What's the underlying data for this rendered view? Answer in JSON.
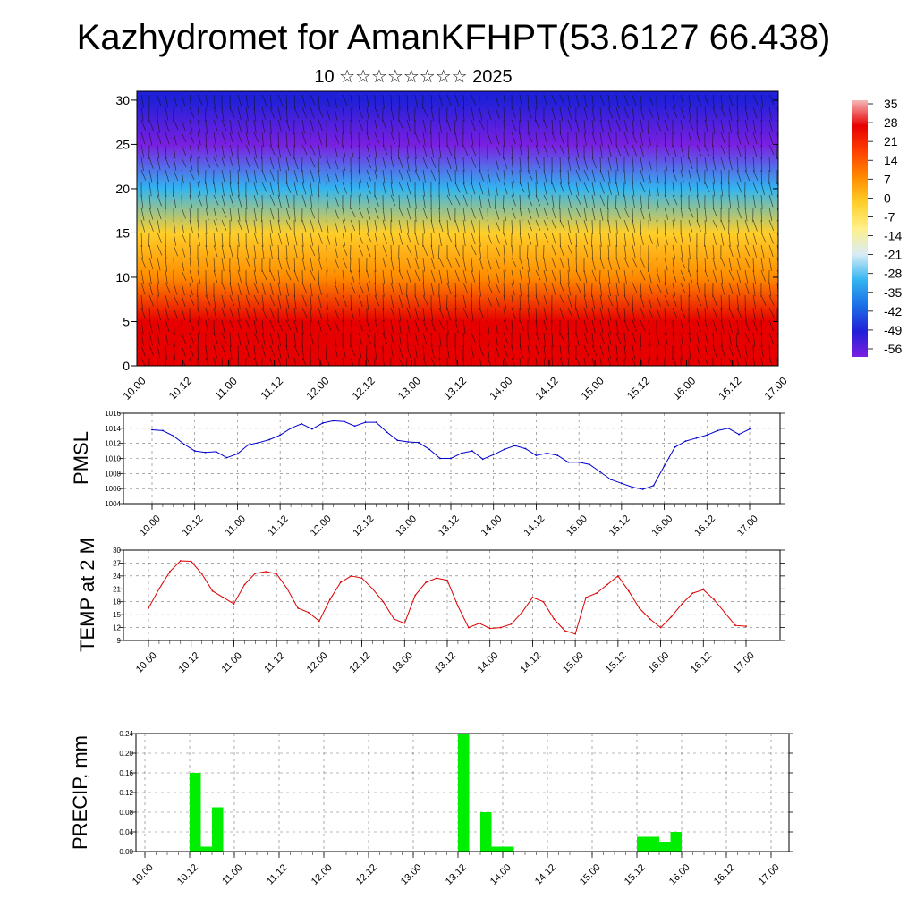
{
  "title": "Kazhydromet for AmanKFHPT(53.6127 66.438)",
  "subtitle": "10 ☆☆☆☆☆☆☆☆ 2025",
  "x_labels": [
    "10.00",
    "10.12",
    "11.00",
    "11.12",
    "12.00",
    "12.12",
    "13.00",
    "13.12",
    "14.00",
    "14.12",
    "15.00",
    "15.12",
    "16.00",
    "16.12",
    "17.00"
  ],
  "colorbar": {
    "labels": [
      "35",
      "28",
      "21",
      "14",
      "7",
      "0",
      "-7",
      "-14",
      "-21",
      "-28",
      "-35",
      "-42",
      "-49",
      "-56"
    ],
    "colors": [
      "#f6b8b8",
      "#e60000",
      "#ff4000",
      "#ff8c00",
      "#ffcf2a",
      "#fff08a",
      "#d8ecf6",
      "#33b5f0",
      "#1c6fe6",
      "#2020d8",
      "#7a1fe0"
    ]
  },
  "chart_data": [
    {
      "type": "heatmap",
      "name": "vertical temperature/wind cross-section",
      "x_ticks": [
        "10.00",
        "10.12",
        "11.00",
        "11.12",
        "12.00",
        "12.12",
        "13.00",
        "13.12",
        "14.00",
        "14.12",
        "15.00",
        "15.12",
        "16.00",
        "16.12",
        "17.00"
      ],
      "y_ticks": [
        0,
        5,
        10,
        15,
        20,
        25,
        30
      ],
      "ylim": [
        0,
        31
      ],
      "color_range": [
        -56,
        35
      ],
      "profile": {
        "height": [
          0,
          5,
          10,
          15,
          20,
          25,
          30
        ],
        "temperature": [
          26,
          22,
          12,
          -4,
          -30,
          -52,
          -48
        ]
      }
    },
    {
      "type": "line",
      "ylabel": "PMSL",
      "color": "#0000cc",
      "ylim": [
        1004,
        1016
      ],
      "y_ticks": [
        1004,
        1006,
        1008,
        1010,
        1012,
        1014,
        1016
      ],
      "x_ticks": [
        "10.00",
        "10.12",
        "11.00",
        "11.12",
        "12.00",
        "12.12",
        "13.00",
        "13.12",
        "14.00",
        "14.12",
        "15.00",
        "15.12",
        "16.00",
        "16.12",
        "17.00"
      ],
      "values": [
        1013.8,
        1013.7,
        1013.0,
        1011.9,
        1011.0,
        1010.8,
        1010.9,
        1010.1,
        1010.6,
        1011.8,
        1012.1,
        1012.5,
        1013.1,
        1014.0,
        1014.6,
        1013.9,
        1014.7,
        1015.0,
        1014.9,
        1014.3,
        1014.8,
        1014.8,
        1013.5,
        1012.4,
        1012.2,
        1012.1,
        1011.2,
        1010.0,
        1010.0,
        1010.7,
        1011.0,
        1009.9,
        1010.5,
        1011.2,
        1011.7,
        1011.3,
        1010.4,
        1010.7,
        1010.4,
        1009.5,
        1009.5,
        1009.2,
        1008.2,
        1007.2,
        1006.7,
        1006.2,
        1005.9,
        1006.4,
        1009.0,
        1011.5,
        1012.3,
        1012.7,
        1013.1,
        1013.7,
        1014.0,
        1013.2,
        1013.9
      ]
    },
    {
      "type": "line",
      "ylabel": "TEMP at 2 M",
      "color": "#dd0000",
      "ylim": [
        9,
        30
      ],
      "y_ticks": [
        9,
        12,
        15,
        18,
        21,
        24,
        27,
        30
      ],
      "x_ticks": [
        "10.00",
        "10.12",
        "11.00",
        "11.12",
        "12.00",
        "12.12",
        "13.00",
        "13.12",
        "14.00",
        "14.12",
        "15.00",
        "15.12",
        "16.00",
        "16.12",
        "17.00"
      ],
      "values": [
        16.5,
        21.0,
        25.0,
        27.5,
        27.4,
        24.5,
        20.5,
        19.0,
        17.5,
        22.0,
        24.6,
        25.0,
        24.5,
        21.0,
        16.5,
        15.5,
        13.5,
        18.5,
        22.5,
        24.0,
        23.5,
        21.0,
        18.0,
        14.0,
        13.0,
        19.5,
        22.5,
        23.5,
        23.0,
        17.0,
        12.0,
        13.0,
        11.8,
        12.0,
        12.8,
        15.5,
        19.0,
        18.0,
        14.0,
        11.3,
        10.5,
        19.0,
        20.0,
        22.0,
        24.0,
        20.5,
        16.5,
        14.0,
        12.0,
        14.5,
        17.5,
        20.0,
        20.8,
        18.5,
        15.5,
        12.5,
        12.3
      ]
    },
    {
      "type": "bar",
      "ylabel": "PRECIP, mm",
      "color": "#00ee00",
      "ylim": [
        0,
        0.24
      ],
      "y_ticks": [
        "0.00",
        "0.04",
        "0.08",
        "0.12",
        "0.16",
        "0.20",
        "0.24"
      ],
      "x_ticks": [
        "10.00",
        "10.12",
        "11.00",
        "11.12",
        "12.00",
        "12.12",
        "13.00",
        "13.12",
        "14.00",
        "14.12",
        "15.00",
        "15.12",
        "16.00",
        "16.12",
        "17.00"
      ],
      "values": [
        0,
        0,
        0,
        0,
        0.16,
        0.01,
        0.09,
        0,
        0,
        0,
        0,
        0,
        0,
        0,
        0,
        0,
        0,
        0,
        0,
        0,
        0,
        0,
        0,
        0,
        0,
        0,
        0,
        0,
        0.24,
        0,
        0.08,
        0.01,
        0.01,
        0,
        0,
        0,
        0,
        0,
        0,
        0,
        0,
        0,
        0,
        0,
        0.03,
        0.03,
        0.02,
        0.04,
        0,
        0,
        0,
        0,
        0,
        0,
        0,
        0,
        0
      ]
    }
  ]
}
